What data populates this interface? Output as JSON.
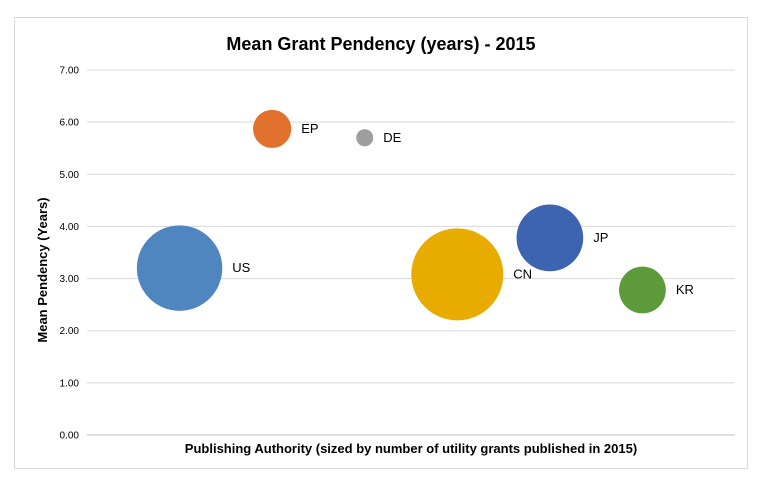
{
  "chart_data": {
    "type": "bubble",
    "title": "Mean Grant Pendency (years) - 2015",
    "xlabel": "Publishing Authority (sized by number of utility grants published in 2015)",
    "ylabel": "Mean Pendency (Years)",
    "ylim": [
      0,
      7
    ],
    "y_ticks": [
      "0.00",
      "1.00",
      "2.00",
      "3.00",
      "4.00",
      "5.00",
      "6.00",
      "7.00"
    ],
    "xlim": [
      0,
      7
    ],
    "grid": true,
    "points": [
      {
        "label": "US",
        "x": 1,
        "y": 3.2,
        "size": 100,
        "color": "#4f86c0"
      },
      {
        "label": "EP",
        "x": 2,
        "y": 5.87,
        "size": 20,
        "color": "#e0722e"
      },
      {
        "label": "DE",
        "x": 3,
        "y": 5.7,
        "size": 4,
        "color": "#9e9e9e"
      },
      {
        "label": "CN",
        "x": 4,
        "y": 3.08,
        "size": 116,
        "color": "#e8ac00"
      },
      {
        "label": "JP",
        "x": 5,
        "y": 3.78,
        "size": 61,
        "color": "#3d64b0"
      },
      {
        "label": "KR",
        "x": 6,
        "y": 2.78,
        "size": 30,
        "color": "#5c9a3a"
      }
    ]
  }
}
